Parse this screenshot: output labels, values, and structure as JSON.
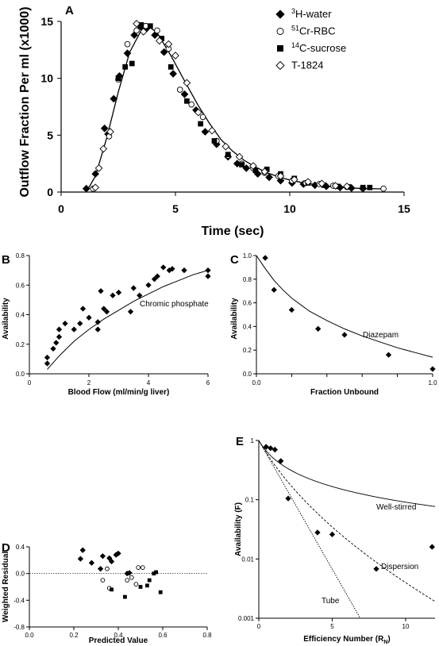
{
  "chart_data": [
    {
      "panel": "A",
      "type": "scatter",
      "xlabel": "Time (sec)",
      "ylabel": "Outflow Fraction Per ml (x1000)",
      "xlim": [
        0,
        15
      ],
      "ylim": [
        0,
        15
      ],
      "xticks": [
        "0",
        "5",
        "10",
        "15"
      ],
      "yticks": [
        "0",
        "5",
        "10",
        "15"
      ],
      "legend": [
        {
          "sup": "3",
          "text": "H-water",
          "marker": "diamond-filled"
        },
        {
          "sup": "51",
          "text": "Cr-RBC",
          "marker": "circle-open"
        },
        {
          "sup": "14",
          "text": "C-sucrose",
          "marker": "square-filled"
        },
        {
          "sup": "",
          "text": "T-1824",
          "marker": "diamond-open"
        }
      ],
      "series": [
        {
          "name": "3H-water",
          "marker": "diamond-filled",
          "points": [
            [
              1.1,
              0.3
            ],
            [
              1.5,
              1.6
            ],
            [
              1.9,
              5.6
            ],
            [
              2.05,
              5.1
            ],
            [
              2.3,
              8.2
            ],
            [
              2.55,
              10.2
            ],
            [
              2.9,
              12.2
            ],
            [
              3.2,
              13.8
            ],
            [
              3.5,
              14.5
            ],
            [
              3.75,
              14.4
            ],
            [
              4.1,
              13.8
            ],
            [
              4.5,
              12.3
            ],
            [
              4.9,
              10.4
            ],
            [
              5.4,
              8.6
            ],
            [
              5.9,
              7.2
            ],
            [
              6.3,
              5.3
            ],
            [
              6.8,
              4.2
            ],
            [
              7.3,
              3.1
            ],
            [
              7.7,
              2.5
            ],
            [
              8.1,
              2.1
            ],
            [
              8.6,
              1.6
            ],
            [
              9.1,
              1.3
            ],
            [
              9.6,
              1.0
            ],
            [
              10.1,
              0.8
            ],
            [
              10.6,
              0.7
            ],
            [
              11.1,
              0.6
            ],
            [
              11.6,
              0.5
            ],
            [
              12.2,
              0.4
            ],
            [
              12.7,
              0.35
            ],
            [
              13.2,
              0.3
            ]
          ]
        },
        {
          "name": "51Cr-RBC",
          "marker": "circle-open",
          "points": [
            [
              1.4,
              0.3
            ],
            [
              2.1,
              4.9
            ],
            [
              2.5,
              9.9
            ],
            [
              2.9,
              13.0
            ],
            [
              3.3,
              14.2
            ],
            [
              3.7,
              14.6
            ],
            [
              4.2,
              14.2
            ],
            [
              4.7,
              12.6
            ],
            [
              5.2,
              9.0
            ],
            [
              5.7,
              7.7
            ],
            [
              6.2,
              6.6
            ],
            [
              6.8,
              4.5
            ],
            [
              7.3,
              3.2
            ],
            [
              7.9,
              2.5
            ],
            [
              8.4,
              2.1
            ],
            [
              8.9,
              1.7
            ],
            [
              9.5,
              1.4
            ],
            [
              10.1,
              1.0
            ],
            [
              10.7,
              0.8
            ],
            [
              11.3,
              0.7
            ],
            [
              11.9,
              0.55
            ],
            [
              12.5,
              0.45
            ],
            [
              13.2,
              0.35
            ],
            [
              14.1,
              0.3
            ]
          ]
        },
        {
          "name": "14C-sucrose",
          "marker": "square-filled",
          "points": [
            [
              2.5,
              10.0
            ],
            [
              2.8,
              11.0
            ],
            [
              3.1,
              11.3
            ],
            [
              3.5,
              14.7
            ],
            [
              3.9,
              14.6
            ],
            [
              4.4,
              13.5
            ],
            [
              4.8,
              11.0
            ],
            [
              5.5,
              8.0
            ],
            [
              6.1,
              6.0
            ],
            [
              6.7,
              4.5
            ],
            [
              7.3,
              3.3
            ],
            [
              7.9,
              2.4
            ],
            [
              8.5,
              1.9
            ],
            [
              9.0,
              2.0
            ],
            [
              9.6,
              1.6
            ],
            [
              10.2,
              1.2
            ],
            [
              10.8,
              0.8
            ],
            [
              11.5,
              0.6
            ],
            [
              12.1,
              0.5
            ],
            [
              12.6,
              0.45
            ],
            [
              13.2,
              0.4
            ],
            [
              13.5,
              0.4
            ]
          ]
        },
        {
          "name": "T-1824",
          "marker": "diamond-open",
          "points": [
            [
              1.5,
              0.4
            ],
            [
              1.65,
              2.1
            ],
            [
              1.85,
              3.8
            ],
            [
              2.15,
              5.3
            ],
            [
              3.3,
              14.8
            ],
            [
              3.6,
              14.1
            ],
            [
              4.3,
              13.3
            ],
            [
              4.7,
              13.0
            ],
            [
              5.0,
              12.0
            ],
            [
              5.5,
              9.6
            ],
            [
              6.0,
              7.0
            ],
            [
              6.6,
              5.4
            ],
            [
              7.2,
              4.0
            ],
            [
              7.8,
              3.1
            ],
            [
              8.4,
              2.3
            ],
            [
              8.9,
              1.8
            ],
            [
              9.6,
              1.4
            ],
            [
              10.2,
              1.1
            ],
            [
              10.8,
              0.9
            ],
            [
              11.4,
              0.75
            ],
            [
              12.0,
              0.55
            ],
            [
              12.5,
              0.5
            ]
          ]
        }
      ],
      "fit_curve": [
        [
          1.1,
          0.0
        ],
        [
          1.5,
          1.4
        ],
        [
          2.0,
          4.8
        ],
        [
          2.5,
          8.8
        ],
        [
          3.0,
          12.3
        ],
        [
          3.5,
          14.2
        ],
        [
          3.8,
          14.6
        ],
        [
          4.2,
          14.0
        ],
        [
          4.8,
          12.0
        ],
        [
          5.5,
          9.4
        ],
        [
          6.0,
          7.6
        ],
        [
          6.5,
          6.0
        ],
        [
          7.0,
          4.6
        ],
        [
          7.5,
          3.6
        ],
        [
          8.0,
          2.8
        ],
        [
          8.5,
          2.2
        ],
        [
          9.0,
          1.7
        ],
        [
          9.5,
          1.35
        ],
        [
          10.0,
          1.05
        ],
        [
          10.5,
          0.85
        ],
        [
          11.0,
          0.7
        ],
        [
          11.5,
          0.55
        ],
        [
          12.0,
          0.45
        ],
        [
          12.5,
          0.38
        ],
        [
          13.0,
          0.33
        ],
        [
          13.5,
          0.3
        ],
        [
          14.0,
          0.28
        ]
      ]
    },
    {
      "panel": "B",
      "type": "scatter",
      "xlabel": "Blood Flow (ml/min/g liver)",
      "ylabel": "Availability",
      "xlim": [
        0,
        6
      ],
      "ylim": [
        0,
        0.8
      ],
      "xticks": [
        "0",
        "2",
        "4",
        "6"
      ],
      "yticks": [
        "0.0",
        "0.2",
        "0.4",
        "0.6",
        "0.8"
      ],
      "annotation": "Chromic phosphate",
      "points": [
        [
          0.6,
          0.07
        ],
        [
          0.6,
          0.11
        ],
        [
          0.8,
          0.17
        ],
        [
          0.9,
          0.21
        ],
        [
          1.0,
          0.25
        ],
        [
          1.0,
          0.3
        ],
        [
          1.2,
          0.34
        ],
        [
          1.5,
          0.3
        ],
        [
          1.7,
          0.34
        ],
        [
          1.8,
          0.44
        ],
        [
          2.0,
          0.38
        ],
        [
          2.3,
          0.3
        ],
        [
          2.3,
          0.35
        ],
        [
          2.4,
          0.56
        ],
        [
          2.5,
          0.44
        ],
        [
          2.6,
          0.42
        ],
        [
          2.8,
          0.53
        ],
        [
          3.0,
          0.55
        ],
        [
          3.4,
          0.42
        ],
        [
          3.5,
          0.58
        ],
        [
          3.7,
          0.53
        ],
        [
          4.0,
          0.6
        ],
        [
          4.2,
          0.64
        ],
        [
          4.3,
          0.66
        ],
        [
          4.5,
          0.72
        ],
        [
          4.7,
          0.7
        ],
        [
          4.8,
          0.71
        ],
        [
          5.2,
          0.7
        ],
        [
          6.0,
          0.66
        ],
        [
          6.0,
          0.7
        ]
      ],
      "fit_curve": [
        [
          0.6,
          0.03
        ],
        [
          1.0,
          0.12
        ],
        [
          1.5,
          0.22
        ],
        [
          2.0,
          0.3
        ],
        [
          2.5,
          0.37
        ],
        [
          3.0,
          0.43
        ],
        [
          3.5,
          0.49
        ],
        [
          4.0,
          0.54
        ],
        [
          4.5,
          0.59
        ],
        [
          5.0,
          0.63
        ],
        [
          5.5,
          0.67
        ],
        [
          6.0,
          0.7
        ]
      ]
    },
    {
      "panel": "C",
      "type": "scatter",
      "xlabel": "Fraction Unbound",
      "ylabel": "Availability",
      "xlim": [
        0,
        1
      ],
      "ylim": [
        0,
        1
      ],
      "xticks": [
        "0.0",
        "0.2",
        "0.4",
        "0.6",
        "0.8",
        "1.0"
      ],
      "yticks": [
        "0.0",
        "0.2",
        "0.4",
        "0.6",
        "0.8",
        "1.0"
      ],
      "annotation": "Diazepam",
      "points": [
        [
          0.05,
          0.98
        ],
        [
          0.1,
          0.71
        ],
        [
          0.2,
          0.54
        ],
        [
          0.35,
          0.38
        ],
        [
          0.5,
          0.33
        ],
        [
          0.75,
          0.16
        ],
        [
          1.0,
          0.04
        ]
      ],
      "fit_curve": [
        [
          0.0,
          1.0
        ],
        [
          0.05,
          0.89
        ],
        [
          0.1,
          0.79
        ],
        [
          0.15,
          0.71
        ],
        [
          0.2,
          0.64
        ],
        [
          0.3,
          0.53
        ],
        [
          0.4,
          0.45
        ],
        [
          0.5,
          0.38
        ],
        [
          0.6,
          0.32
        ],
        [
          0.7,
          0.27
        ],
        [
          0.8,
          0.22
        ],
        [
          0.9,
          0.18
        ],
        [
          1.0,
          0.14
        ]
      ]
    },
    {
      "panel": "D",
      "type": "scatter",
      "xlabel": "Predicted Value",
      "ylabel": "Weighted Residual",
      "xlim": [
        0,
        0.8
      ],
      "ylim": [
        -0.8,
        0.4
      ],
      "xticks": [
        "0.0",
        "0.2",
        "0.4",
        "0.6",
        "0.8"
      ],
      "yticks": [
        "-0.8",
        "-0.4",
        "0.0",
        "0.4"
      ],
      "reference_line": 0,
      "series": [
        {
          "marker": "diamond-filled",
          "points": [
            [
              0.23,
              0.22
            ],
            [
              0.24,
              0.35
            ],
            [
              0.28,
              0.16
            ],
            [
              0.32,
              0.07
            ],
            [
              0.33,
              0.26
            ],
            [
              0.36,
              0.23
            ],
            [
              0.37,
              0.18
            ],
            [
              0.39,
              0.28
            ],
            [
              0.4,
              0.3
            ],
            [
              0.44,
              0.0
            ],
            [
              0.45,
              0.01
            ]
          ]
        },
        {
          "marker": "circle-open",
          "points": [
            [
              0.33,
              -0.1
            ],
            [
              0.35,
              0.07
            ],
            [
              0.36,
              -0.22
            ],
            [
              0.44,
              -0.1
            ],
            [
              0.46,
              -0.06
            ],
            [
              0.48,
              -0.16
            ],
            [
              0.49,
              0.09
            ],
            [
              0.51,
              0.09
            ]
          ]
        },
        {
          "marker": "square-filled",
          "points": [
            [
              0.37,
              -0.24
            ],
            [
              0.43,
              -0.35
            ],
            [
              0.5,
              -0.2
            ],
            [
              0.53,
              -0.18
            ],
            [
              0.54,
              -0.1
            ],
            [
              0.56,
              0.0
            ],
            [
              0.57,
              0.02
            ],
            [
              0.59,
              -0.28
            ]
          ]
        }
      ]
    },
    {
      "panel": "E",
      "type": "line",
      "xlabel": "Efficiency Number (R",
      "xlabel_sub": "N",
      "ylabel": "Availability (F)",
      "xscale": "linear",
      "yscale": "log",
      "xlim": [
        0,
        12
      ],
      "ylim": [
        0.001,
        1
      ],
      "xticks": [
        "0",
        "5",
        "10"
      ],
      "yticks": [
        "0.001",
        "0.01",
        "0.1",
        "1"
      ],
      "series_labels": [
        "Well-stirred",
        "Dispersion",
        "Tube"
      ],
      "points": [
        [
          0.5,
          0.78
        ],
        [
          0.8,
          0.74
        ],
        [
          1.1,
          0.7
        ],
        [
          1.5,
          0.45
        ],
        [
          2.0,
          0.105
        ],
        [
          4.0,
          0.028
        ],
        [
          5.0,
          0.026
        ],
        [
          8.0,
          0.0068
        ],
        [
          11.8,
          0.016
        ]
      ],
      "curves": [
        {
          "name": "Well-stirred",
          "style": "solid",
          "model": "well-stirred"
        },
        {
          "name": "Dispersion",
          "style": "dashed",
          "model": "dispersion"
        },
        {
          "name": "Tube",
          "style": "dotted",
          "model": "tube"
        }
      ]
    }
  ]
}
